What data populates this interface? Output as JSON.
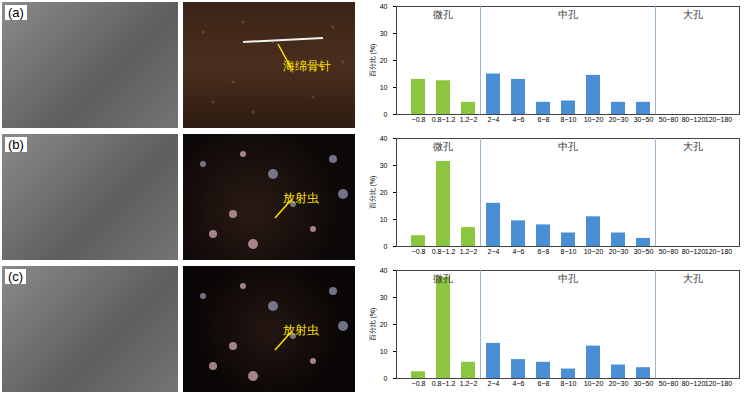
{
  "chart_data": [
    {
      "type": "bar",
      "title": "(a)",
      "annotations": [
        "海绵骨针"
      ],
      "categories": [
        "~0.8",
        "0.8~1.2",
        "1.2~2",
        "2~4",
        "4~6",
        "6~8",
        "8~10",
        "10~20",
        "20~30",
        "30~50",
        "50~80",
        "80~120",
        "120~180"
      ],
      "values": [
        13,
        12.5,
        4.5,
        15,
        13,
        4.5,
        5,
        14.5,
        4.5,
        4.5,
        0,
        0,
        0
      ],
      "groups": [
        {
          "name": "微孔",
          "color": "#8cc63f",
          "categories": [
            "~0.8",
            "0.8~1.2",
            "1.2~2"
          ]
        },
        {
          "name": "中孔",
          "color": "#4a8fd6",
          "categories": [
            "2~4",
            "4~6",
            "6~8",
            "8~10",
            "10~20",
            "20~30",
            "30~50"
          ]
        },
        {
          "name": "大孔",
          "color": "#4a8fd6",
          "categories": [
            "50~80",
            "80~120",
            "120~180"
          ]
        }
      ],
      "y_label": "百分比 (%)",
      "ylim": [
        0,
        40
      ],
      "yticks": [
        0,
        10,
        20,
        30,
        40
      ]
    },
    {
      "type": "bar",
      "title": "(b)",
      "annotations": [
        "放射虫"
      ],
      "categories": [
        "~0.8",
        "0.8~1.2",
        "1.2~2",
        "2~4",
        "4~6",
        "6~8",
        "8~10",
        "10~20",
        "20~30",
        "30~50",
        "50~80",
        "80~120",
        "120~180"
      ],
      "values": [
        4,
        31.5,
        7,
        16,
        9.5,
        8,
        5,
        11,
        5,
        3,
        0,
        0,
        0
      ],
      "groups": [
        {
          "name": "微孔",
          "color": "#8cc63f",
          "categories": [
            "~0.8",
            "0.8~1.2",
            "1.2~2"
          ]
        },
        {
          "name": "中孔",
          "color": "#4a8fd6",
          "categories": [
            "2~4",
            "4~6",
            "6~8",
            "8~10",
            "10~20",
            "20~30",
            "30~50"
          ]
        },
        {
          "name": "大孔",
          "color": "#4a8fd6",
          "categories": [
            "50~80",
            "80~120",
            "120~180"
          ]
        }
      ],
      "y_label": "百分比 (%)",
      "ylim": [
        0,
        40
      ],
      "yticks": [
        0,
        10,
        20,
        30,
        40
      ]
    },
    {
      "type": "bar",
      "title": "(c)",
      "annotations": [
        "放射虫"
      ],
      "categories": [
        "~0.8",
        "0.8~1.2",
        "1.2~2",
        "2~4",
        "4~6",
        "6~8",
        "8~10",
        "10~20",
        "20~30",
        "30~50",
        "50~80",
        "80~120",
        "120~180"
      ],
      "values": [
        2.5,
        37.5,
        6,
        13,
        7,
        6,
        3.5,
        12,
        5,
        4,
        0,
        0,
        0
      ],
      "groups": [
        {
          "name": "微孔",
          "color": "#8cc63f",
          "categories": [
            "~0.8",
            "0.8~1.2",
            "1.2~2"
          ]
        },
        {
          "name": "中孔",
          "color": "#4a8fd6",
          "categories": [
            "2~4",
            "4~6",
            "6~8",
            "8~10",
            "10~20",
            "20~30",
            "30~50"
          ]
        },
        {
          "name": "大孔",
          "color": "#4a8fd6",
          "categories": [
            "50~80",
            "80~120",
            "120~180"
          ]
        }
      ],
      "y_label": "百分比 (%)",
      "ylim": [
        0,
        40
      ],
      "yticks": [
        0,
        10,
        20,
        30,
        40
      ]
    }
  ]
}
